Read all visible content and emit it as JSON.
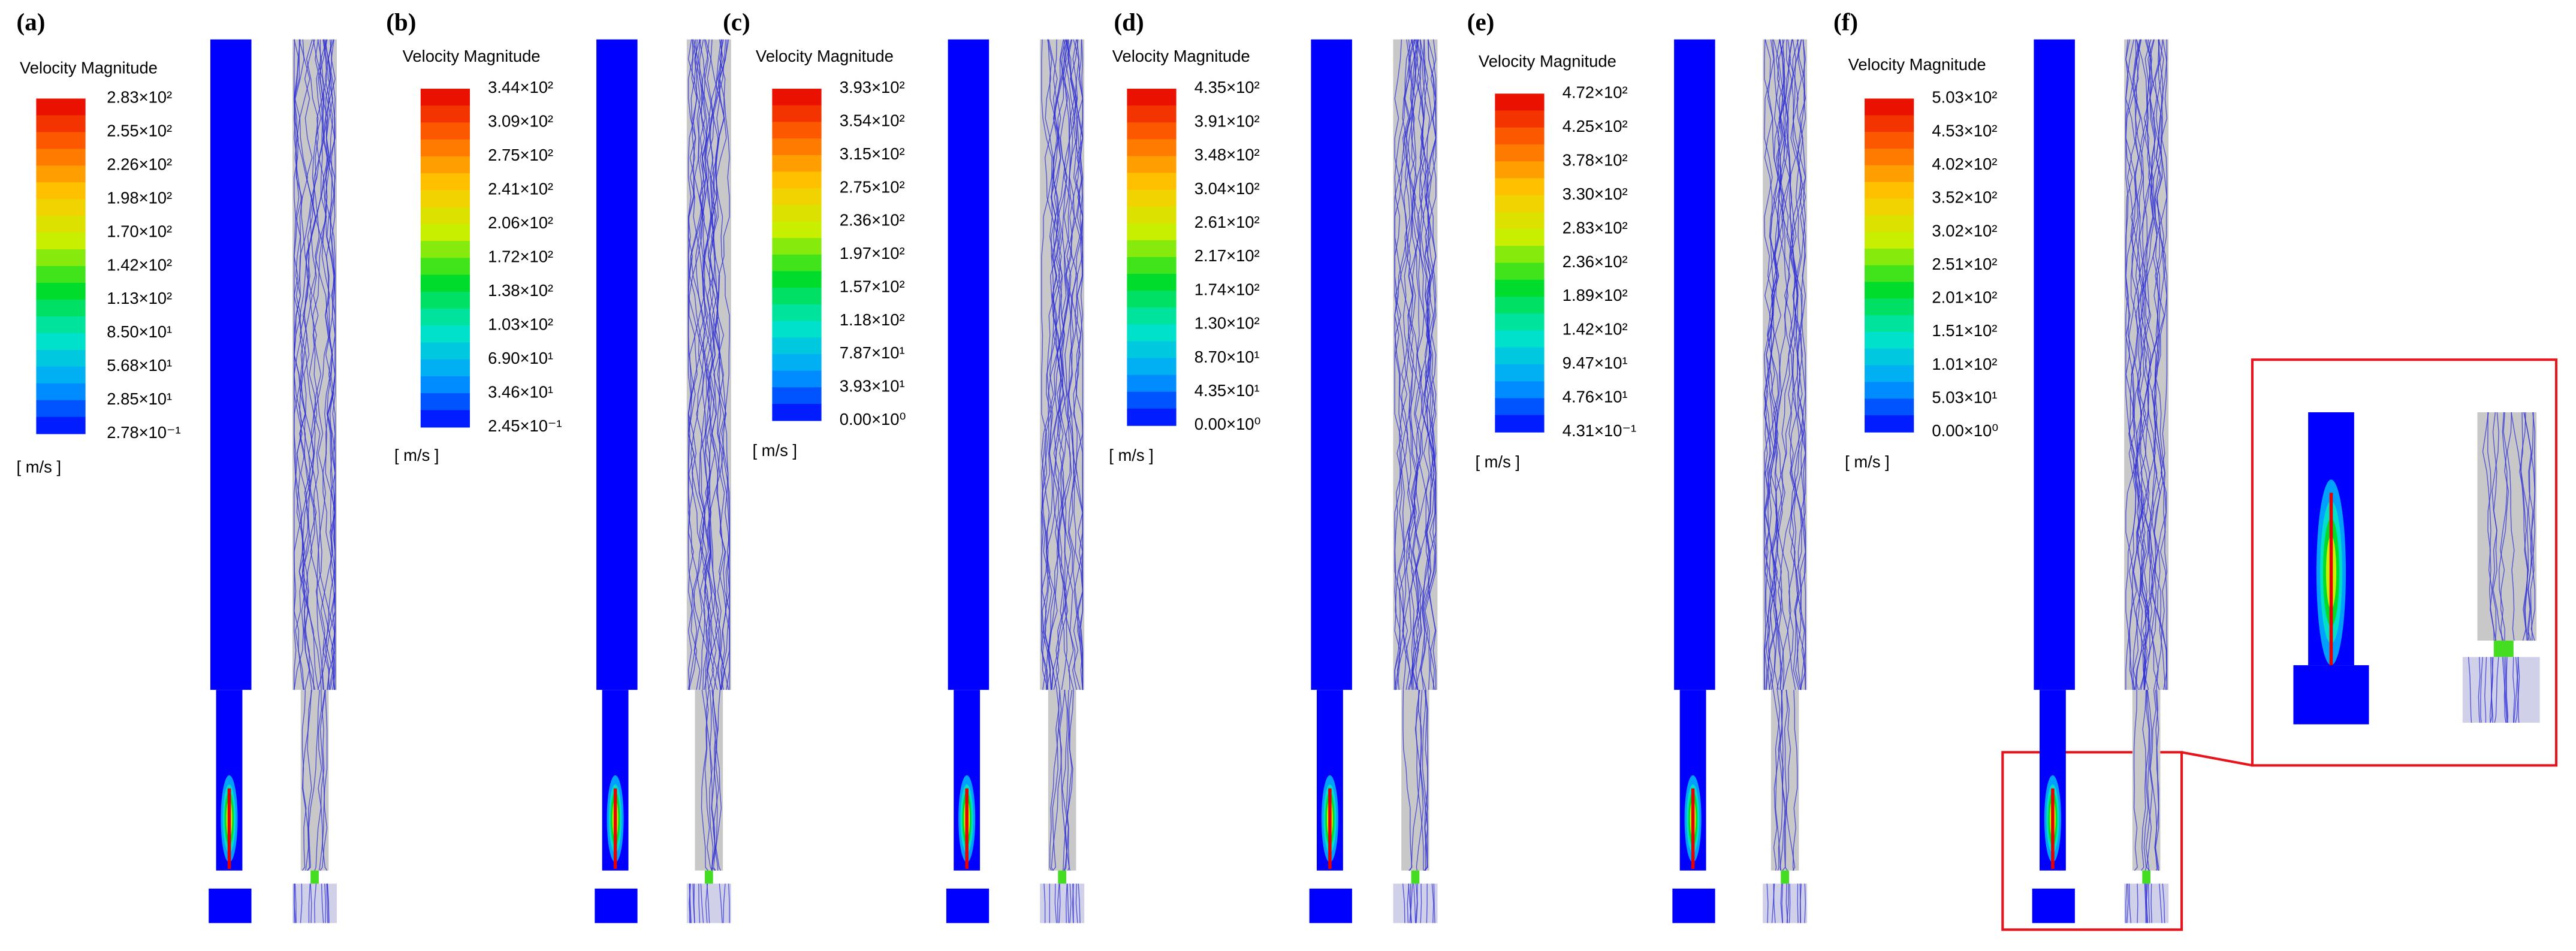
{
  "panels": [
    {
      "label": "(a)",
      "legend_title": "Velocity Magnitude",
      "unit": "[ m/s ]",
      "ticks": [
        "2.83×10²",
        "2.55×10²",
        "2.26×10²",
        "1.98×10²",
        "1.70×10²",
        "1.42×10²",
        "1.13×10²",
        "8.50×10¹",
        "5.68×10¹",
        "2.85×10¹",
        "2.78×10⁻¹"
      ]
    },
    {
      "label": "(b)",
      "legend_title": "Velocity Magnitude",
      "unit": "[ m/s ]",
      "ticks": [
        "3.44×10²",
        "3.09×10²",
        "2.75×10²",
        "2.41×10²",
        "2.06×10²",
        "1.72×10²",
        "1.38×10²",
        "1.03×10²",
        "6.90×10¹",
        "3.46×10¹",
        "2.45×10⁻¹"
      ]
    },
    {
      "label": "(c)",
      "legend_title": "Velocity Magnitude",
      "unit": "[ m/s ]",
      "ticks": [
        "3.93×10²",
        "3.54×10²",
        "3.15×10²",
        "2.75×10²",
        "2.36×10²",
        "1.97×10²",
        "1.57×10²",
        "1.18×10²",
        "7.87×10¹",
        "3.93×10¹",
        "0.00×10⁰"
      ]
    },
    {
      "label": "(d)",
      "legend_title": "Velocity Magnitude",
      "unit": "[ m/s ]",
      "ticks": [
        "4.35×10²",
        "3.91×10²",
        "3.48×10²",
        "3.04×10²",
        "2.61×10²",
        "2.17×10²",
        "1.74×10²",
        "1.30×10²",
        "8.70×10¹",
        "4.35×10¹",
        "0.00×10⁰"
      ]
    },
    {
      "label": "(e)",
      "legend_title": "Velocity Magnitude",
      "unit": "[ m/s ]",
      "ticks": [
        "4.72×10²",
        "4.25×10²",
        "3.78×10²",
        "3.30×10²",
        "2.83×10²",
        "2.36×10²",
        "1.89×10²",
        "1.42×10²",
        "9.47×10¹",
        "4.76×10¹",
        "4.31×10⁻¹"
      ]
    },
    {
      "label": "(f)",
      "legend_title": "Velocity Magnitude",
      "unit": "[ m/s ]",
      "ticks": [
        "5.03×10²",
        "4.53×10²",
        "4.02×10²",
        "3.52×10²",
        "3.02×10²",
        "2.51×10²",
        "2.01×10²",
        "1.51×10²",
        "1.01×10²",
        "5.03×10¹",
        "0.00×10⁰"
      ]
    }
  ]
}
